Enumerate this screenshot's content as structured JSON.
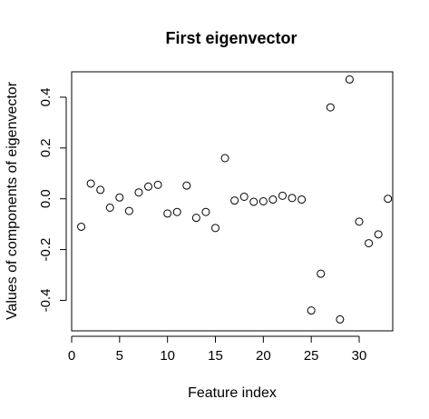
{
  "chart_data": {
    "type": "scatter",
    "title": "First eigenvector",
    "xlabel": "Feature index",
    "ylabel": "Values of components of eigenvector",
    "xlim": [
      0,
      33.5
    ],
    "ylim": [
      -0.52,
      0.5
    ],
    "x_ticks": [
      0,
      5,
      10,
      15,
      20,
      25,
      30
    ],
    "y_ticks": [
      -0.4,
      -0.2,
      0.0,
      0.2,
      0.4
    ],
    "x_tick_labels": [
      "0",
      "5",
      "10",
      "15",
      "20",
      "25",
      "30"
    ],
    "y_tick_labels": [
      "-0.4",
      "-0.2",
      "0.0",
      "0.2",
      "0.4"
    ],
    "grid": false,
    "marker": "open-circle",
    "x": [
      1,
      2,
      3,
      4,
      5,
      6,
      7,
      8,
      9,
      10,
      11,
      12,
      13,
      14,
      15,
      16,
      17,
      18,
      19,
      20,
      21,
      22,
      23,
      24,
      25,
      26,
      27,
      28,
      29,
      30,
      31,
      32,
      33
    ],
    "y": [
      -0.11,
      0.06,
      0.035,
      -0.035,
      0.005,
      -0.048,
      0.025,
      0.048,
      0.055,
      -0.058,
      -0.052,
      0.052,
      -0.075,
      -0.052,
      -0.115,
      0.16,
      -0.007,
      0.008,
      -0.012,
      -0.01,
      -0.003,
      0.012,
      0.003,
      -0.003,
      -0.44,
      -0.295,
      0.36,
      -0.475,
      0.47,
      -0.09,
      -0.175,
      -0.14,
      0.0
    ]
  }
}
